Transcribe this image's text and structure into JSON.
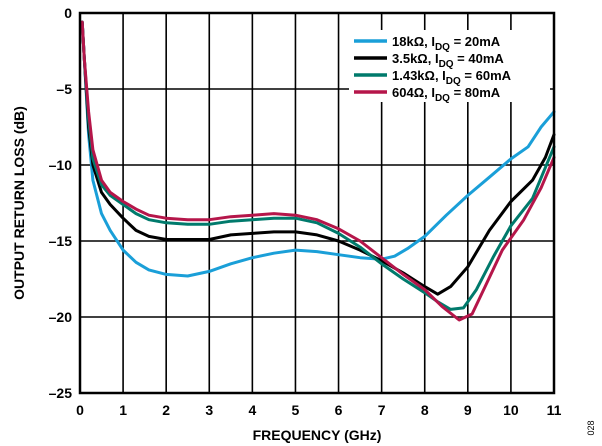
{
  "chart_data": {
    "type": "line",
    "title": "",
    "xlabel": "FREQUENCY (GHz)",
    "ylabel": "OUTPUT RETURN LOSS (dB)",
    "xlim": [
      0,
      11
    ],
    "ylim": [
      -25,
      0
    ],
    "xticks": [
      "0",
      "1",
      "2",
      "3",
      "4",
      "5",
      "6",
      "7",
      "8",
      "9",
      "10",
      "11"
    ],
    "yticks": [
      "0",
      "–5",
      "–10",
      "–15",
      "–20",
      "–25"
    ],
    "grid": true,
    "legend_position": "top-right",
    "series": [
      {
        "label_main": "18kΩ, I",
        "label_sub": "DQ",
        "label_tail": " = 20mA",
        "color": "#1a9fd8",
        "points": [
          [
            0.05,
            -0.6
          ],
          [
            0.1,
            -3
          ],
          [
            0.2,
            -8
          ],
          [
            0.3,
            -11
          ],
          [
            0.5,
            -13.2
          ],
          [
            0.7,
            -14.3
          ],
          [
            1.0,
            -15.6
          ],
          [
            1.3,
            -16.4
          ],
          [
            1.6,
            -16.9
          ],
          [
            2.0,
            -17.2
          ],
          [
            2.5,
            -17.3
          ],
          [
            3.0,
            -17.0
          ],
          [
            3.5,
            -16.5
          ],
          [
            4.0,
            -16.1
          ],
          [
            4.5,
            -15.8
          ],
          [
            5.0,
            -15.6
          ],
          [
            5.5,
            -15.7
          ],
          [
            6.0,
            -15.9
          ],
          [
            6.5,
            -16.1
          ],
          [
            7.0,
            -16.2
          ],
          [
            7.3,
            -16.0
          ],
          [
            7.6,
            -15.5
          ],
          [
            8.0,
            -14.7
          ],
          [
            8.5,
            -13.3
          ],
          [
            9.0,
            -12.0
          ],
          [
            9.5,
            -10.8
          ],
          [
            10.0,
            -9.6
          ],
          [
            10.4,
            -8.8
          ],
          [
            10.7,
            -7.5
          ],
          [
            11.0,
            -6.5
          ]
        ]
      },
      {
        "label_main": "3.5kΩ, I",
        "label_sub": "DQ",
        "label_tail": " = 40mA",
        "color": "#000000",
        "points": [
          [
            0.05,
            -0.6
          ],
          [
            0.1,
            -3
          ],
          [
            0.2,
            -7.5
          ],
          [
            0.3,
            -10
          ],
          [
            0.5,
            -11.8
          ],
          [
            0.7,
            -12.6
          ],
          [
            1.0,
            -13.5
          ],
          [
            1.3,
            -14.3
          ],
          [
            1.6,
            -14.7
          ],
          [
            2.0,
            -14.9
          ],
          [
            2.5,
            -14.9
          ],
          [
            3.0,
            -14.9
          ],
          [
            3.5,
            -14.6
          ],
          [
            4.0,
            -14.5
          ],
          [
            4.5,
            -14.4
          ],
          [
            5.0,
            -14.4
          ],
          [
            5.5,
            -14.6
          ],
          [
            6.0,
            -15.0
          ],
          [
            6.5,
            -15.6
          ],
          [
            7.0,
            -16.3
          ],
          [
            7.5,
            -17.1
          ],
          [
            8.0,
            -18.0
          ],
          [
            8.3,
            -18.5
          ],
          [
            8.6,
            -18.0
          ],
          [
            9.0,
            -16.7
          ],
          [
            9.5,
            -14.3
          ],
          [
            10.0,
            -12.4
          ],
          [
            10.5,
            -11.0
          ],
          [
            10.8,
            -9.5
          ],
          [
            11.0,
            -8.0
          ]
        ]
      },
      {
        "label_main": "1.43kΩ, I",
        "label_sub": "DQ",
        "label_tail": " = 60mA",
        "color": "#007a6c",
        "points": [
          [
            0.05,
            -0.6
          ],
          [
            0.1,
            -3
          ],
          [
            0.2,
            -7
          ],
          [
            0.3,
            -9.6
          ],
          [
            0.5,
            -11.3
          ],
          [
            0.7,
            -12.0
          ],
          [
            1.0,
            -12.6
          ],
          [
            1.3,
            -13.2
          ],
          [
            1.6,
            -13.6
          ],
          [
            2.0,
            -13.8
          ],
          [
            2.5,
            -13.9
          ],
          [
            3.0,
            -13.9
          ],
          [
            3.5,
            -13.7
          ],
          [
            4.0,
            -13.6
          ],
          [
            4.5,
            -13.5
          ],
          [
            5.0,
            -13.5
          ],
          [
            5.5,
            -13.8
          ],
          [
            6.0,
            -14.5
          ],
          [
            6.5,
            -15.4
          ],
          [
            7.0,
            -16.5
          ],
          [
            7.5,
            -17.5
          ],
          [
            8.0,
            -18.4
          ],
          [
            8.3,
            -19.0
          ],
          [
            8.6,
            -19.5
          ],
          [
            8.9,
            -19.4
          ],
          [
            9.2,
            -18.2
          ],
          [
            9.6,
            -16.0
          ],
          [
            10.0,
            -14.0
          ],
          [
            10.5,
            -12.2
          ],
          [
            11.0,
            -8.8
          ]
        ]
      },
      {
        "label_main": "604Ω, I",
        "label_sub": "DQ",
        "label_tail": " = 80mA",
        "color": "#b5164a",
        "points": [
          [
            0.05,
            -0.6
          ],
          [
            0.1,
            -3
          ],
          [
            0.2,
            -6.5
          ],
          [
            0.3,
            -9.0
          ],
          [
            0.5,
            -11.0
          ],
          [
            0.7,
            -11.8
          ],
          [
            1.0,
            -12.4
          ],
          [
            1.3,
            -12.9
          ],
          [
            1.6,
            -13.3
          ],
          [
            2.0,
            -13.5
          ],
          [
            2.5,
            -13.6
          ],
          [
            3.0,
            -13.6
          ],
          [
            3.5,
            -13.4
          ],
          [
            4.0,
            -13.3
          ],
          [
            4.5,
            -13.2
          ],
          [
            5.0,
            -13.3
          ],
          [
            5.5,
            -13.6
          ],
          [
            6.0,
            -14.2
          ],
          [
            6.5,
            -15.0
          ],
          [
            7.0,
            -16.1
          ],
          [
            7.5,
            -17.2
          ],
          [
            8.0,
            -18.2
          ],
          [
            8.4,
            -19.3
          ],
          [
            8.8,
            -20.2
          ],
          [
            9.1,
            -19.8
          ],
          [
            9.4,
            -18.0
          ],
          [
            9.8,
            -15.6
          ],
          [
            10.3,
            -13.6
          ],
          [
            10.7,
            -11.5
          ],
          [
            11.0,
            -9.5
          ]
        ]
      }
    ],
    "figure_id": "028"
  }
}
